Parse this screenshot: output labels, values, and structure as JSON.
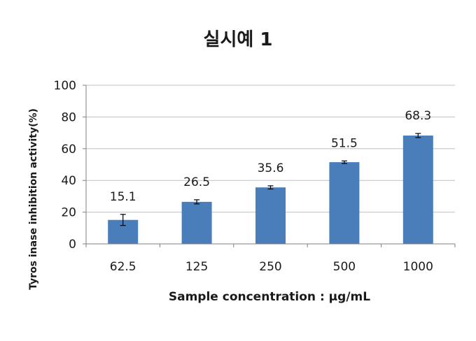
{
  "chart_data": {
    "type": "bar",
    "title": "실시예 1",
    "xlabel": "Sample concentration : µg/mL",
    "ylabel": "Tyros inase inhibition activity(%)",
    "categories": [
      "62.5",
      "125",
      "250",
      "500",
      "1000"
    ],
    "values": [
      15.1,
      26.5,
      35.6,
      51.5,
      68.3
    ],
    "errors": [
      3.5,
      1.3,
      1.0,
      0.8,
      1.3
    ],
    "data_labels": [
      "15.1",
      "26.5",
      "35.6",
      "51.5",
      "68.3"
    ],
    "ylim": [
      0,
      100
    ],
    "yticks": [
      "0",
      "20",
      "40",
      "60",
      "80",
      "100"
    ],
    "grid": true,
    "legend": "none",
    "bar_color": "#4a7ebb"
  }
}
